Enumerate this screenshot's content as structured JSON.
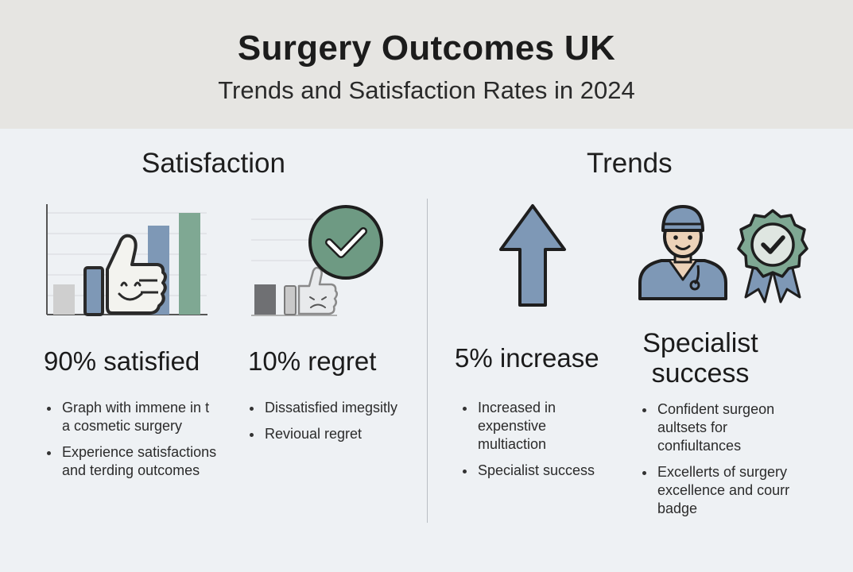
{
  "header": {
    "title": "Surgery Outcomes UK",
    "subtitle": "Trends and Satisfaction Rates in 2024"
  },
  "colors": {
    "header_bg": "#e6e5e2",
    "background": "#eef1f4",
    "blue_accent": "#7e98b6",
    "green_accent": "#7fa893",
    "gray_bar": "#cfcfcf",
    "dark_gray_bar": "#6f7073"
  },
  "sections": {
    "satisfaction": {
      "title": "Satisfaction"
    },
    "trends": {
      "title": "Trends"
    }
  },
  "cards": {
    "satisfied": {
      "icon": "bar-chart-thumbs-up-icon",
      "headline": "90% satisfied",
      "bullets": [
        "Graph with immene in t a cosmetic surgery",
        "Experience satisfactions and terding outcomes"
      ]
    },
    "regret": {
      "icon": "check-circle-thumbs-down-icon",
      "headline": "10% regret",
      "bullets": [
        "Dissatisfied imegsitly",
        "Revioual regret"
      ]
    },
    "increase": {
      "icon": "up-arrow-icon",
      "headline": "5% increase",
      "bullets": [
        "Increased in expenstive multiaction",
        "Specialist success"
      ]
    },
    "specialist": {
      "icons": [
        "surgeon-icon",
        "award-badge-icon"
      ],
      "headline_line1": "Specialist",
      "headline_line2": "success",
      "bullets": [
        "Confident surgeon aultsets for confiultances",
        "Excellerts of surgery excellence and courr badge"
      ]
    }
  }
}
